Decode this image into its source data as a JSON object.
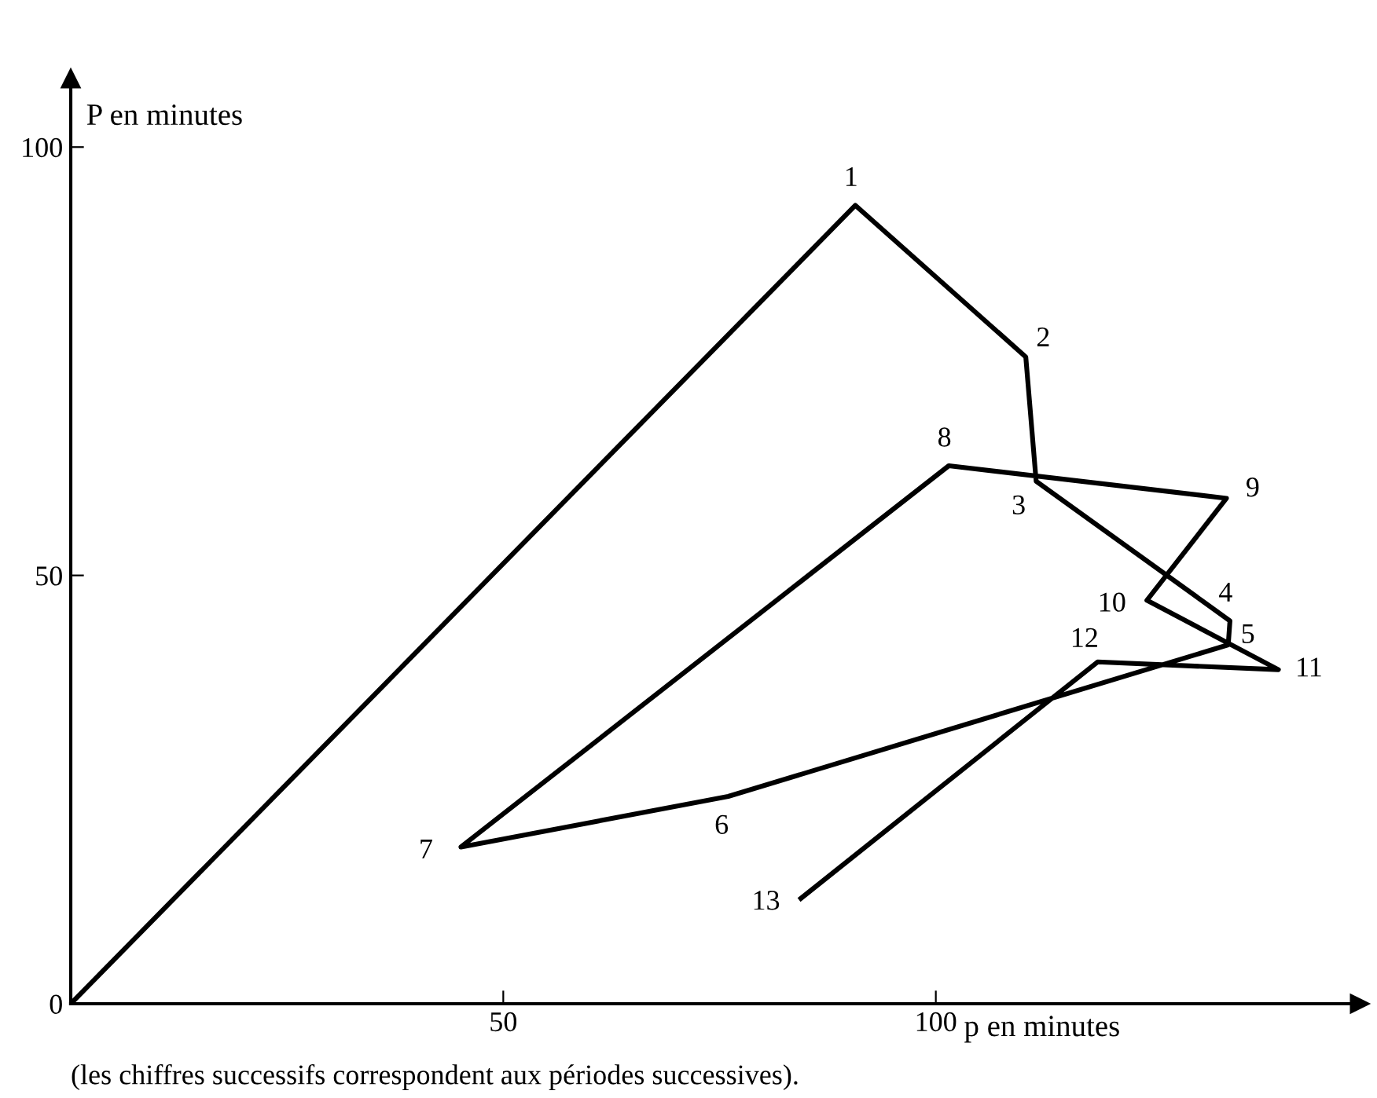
{
  "chart_data": {
    "type": "line",
    "x": [
      0,
      90.7,
      110.4,
      111.6,
      134,
      133.8,
      76.0,
      45.1,
      101.5,
      133.6,
      124.4,
      139.6,
      118.7,
      84.4
    ],
    "series": [
      {
        "color": "#000000",
        "values": [
          0,
          93.2,
          75.5,
          61.0,
          44.7,
          41.9,
          24.2,
          18.3,
          62.8,
          59.0,
          47.1,
          39.0,
          39.9,
          12.3
        ]
      }
    ],
    "xlim": [
      0,
      149
    ],
    "ylim": [
      0,
      108
    ],
    "xticks": [
      50,
      100
    ],
    "yticks": [
      0,
      50,
      100
    ],
    "xlabel": "p en minutes",
    "ylabel": "P en minutes",
    "marker": "none",
    "line_style": "solid",
    "grid": false,
    "legend": false,
    "annotations": [
      {
        "text": "1",
        "x": 90.7,
        "y": 93.2
      },
      {
        "text": "2",
        "x": 110.4,
        "y": 75.5
      },
      {
        "text": "3",
        "x": 111.6,
        "y": 61.0
      },
      {
        "text": "4",
        "x": 134,
        "y": 44.7
      },
      {
        "text": "5",
        "x": 133.8,
        "y": 41.9
      },
      {
        "text": "6",
        "x": 76.0,
        "y": 24.2
      },
      {
        "text": "7",
        "x": 45.1,
        "y": 18.3
      },
      {
        "text": "8",
        "x": 101.5,
        "y": 62.8
      },
      {
        "text": "9",
        "x": 133.6,
        "y": 59.0
      },
      {
        "text": "10",
        "x": 124.4,
        "y": 47.1
      },
      {
        "text": "11",
        "x": 139.6,
        "y": 39.0
      },
      {
        "text": "12",
        "x": 118.7,
        "y": 39.9
      },
      {
        "text": "13",
        "x": 84.4,
        "y": 12.3
      },
      "(les chiffres successifs correspondent aux périodes successives)."
    ]
  }
}
